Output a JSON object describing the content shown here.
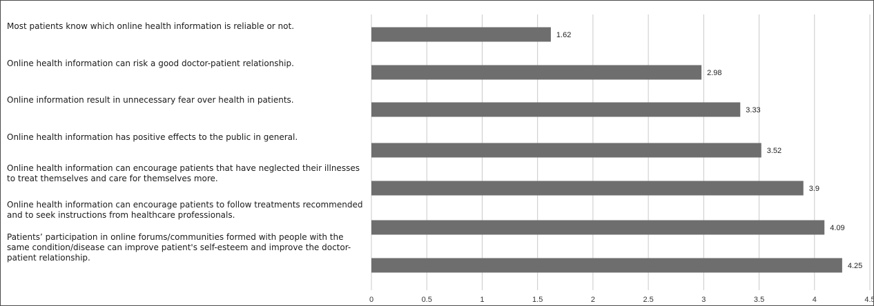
{
  "chart_data": {
    "type": "bar",
    "orientation": "horizontal",
    "categories": [
      "Most patients know which online health information is reliable or not.",
      "Online health information can risk a good doctor-patient relationship.",
      "Online information result in unnecessary fear over health in patients.",
      "Online health information has positive effects to the public in general.",
      "Online health information can encourage patients that have neglected their illnesses to treat themselves and care for themselves more.",
      "Online health information can encourage patients to follow treatments recommended and to seek instructions from healthcare professionals.",
      "Patients’ participation in online forums/communities formed with people with the same condition/disease can improve patient's self-esteem and improve the doctor-patient relationship."
    ],
    "values": [
      1.62,
      2.98,
      3.33,
      3.52,
      3.9,
      4.09,
      4.25
    ],
    "value_labels": [
      "1.62",
      "2.98",
      "3.33",
      "3.52",
      "3.9",
      "4.09",
      "4.25"
    ],
    "xlim": [
      0,
      4.5
    ],
    "xticks": [
      "0",
      "0.5",
      "1",
      "1.5",
      "2",
      "2.5",
      "3",
      "3.5",
      "4",
      "4.5"
    ],
    "grid": "vertical",
    "bar_color": "#6e6e6e",
    "grid_color": "#c8c8c8",
    "title": "",
    "xlabel": "",
    "ylabel": ""
  }
}
